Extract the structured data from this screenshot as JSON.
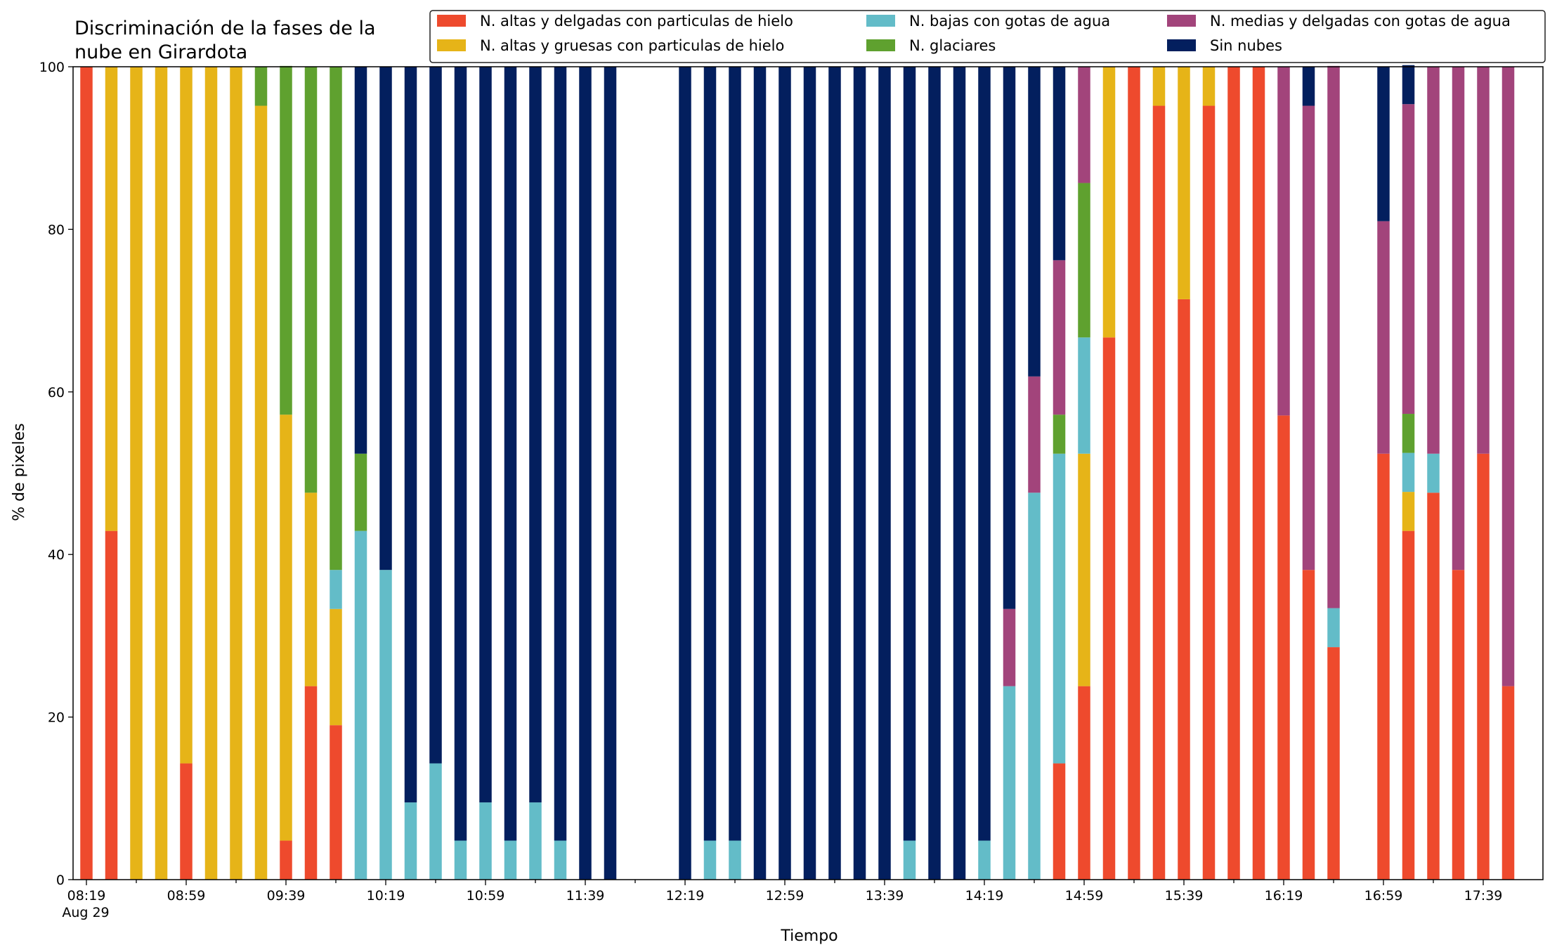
{
  "chart_data": {
    "type": "bar",
    "stacked": true,
    "title": "Discriminación de la fases de la\nnube en Girardota",
    "xlabel": "Tiempo",
    "ylabel": "% de pixeles",
    "ylim": [
      0,
      100
    ],
    "yticks": [
      0,
      20,
      40,
      60,
      80,
      100
    ],
    "x_start": "08:19",
    "x_step_minutes": 10,
    "x_count": 58,
    "xtick_labels": [
      {
        "label": "08:19",
        "sub": "Aug 29"
      },
      {
        "label": "08:59",
        "sub": ""
      },
      {
        "label": "09:39",
        "sub": ""
      },
      {
        "label": "10:19",
        "sub": ""
      },
      {
        "label": "10:59",
        "sub": ""
      },
      {
        "label": "11:39",
        "sub": ""
      },
      {
        "label": "12:19",
        "sub": ""
      },
      {
        "label": "12:59",
        "sub": ""
      },
      {
        "label": "13:39",
        "sub": ""
      },
      {
        "label": "14:19",
        "sub": ""
      },
      {
        "label": "14:59",
        "sub": ""
      },
      {
        "label": "15:39",
        "sub": ""
      },
      {
        "label": "16:19",
        "sub": ""
      },
      {
        "label": "16:59",
        "sub": ""
      },
      {
        "label": "17:39",
        "sub": ""
      }
    ],
    "legend_position": "top-right",
    "grid": false,
    "series": [
      {
        "name": "N. altas y delgadas con particulas de hielo",
        "color": "#ee4a2d",
        "values": [
          100,
          42.9,
          0,
          0,
          14.3,
          0,
          0,
          0,
          4.8,
          23.8,
          19,
          0,
          0,
          0,
          0,
          0,
          0,
          0,
          0,
          0,
          0,
          0,
          0,
          0,
          0,
          0,
          0,
          0,
          0,
          0,
          0,
          0,
          0,
          0,
          0,
          0,
          0,
          0,
          0,
          14.3,
          23.8,
          66.7,
          100,
          95.2,
          71.4,
          95.2,
          100,
          100,
          57.1,
          38.1,
          28.6,
          0,
          52.4,
          42.9,
          47.6,
          38.1,
          52.4,
          23.8
        ]
      },
      {
        "name": "N. altas y gruesas con particulas de hielo",
        "color": "#e6b418",
        "values": [
          0,
          57.1,
          100,
          100,
          85.7,
          100,
          100,
          95.2,
          52.4,
          23.8,
          14.3,
          0,
          0,
          0,
          0,
          0,
          0,
          0,
          0,
          0,
          0,
          0,
          0,
          0,
          0,
          0,
          0,
          0,
          0,
          0,
          0,
          0,
          0,
          0,
          0,
          0,
          0,
          0,
          0,
          0,
          28.6,
          33.3,
          0,
          4.8,
          28.6,
          4.8,
          0,
          0,
          0,
          0,
          0,
          0,
          0,
          4.8,
          0,
          0,
          0,
          0
        ]
      },
      {
        "name": "N. bajas con gotas de agua",
        "color": "#63bcc8",
        "values": [
          0,
          0,
          0,
          0,
          0,
          0,
          0,
          0,
          0,
          0,
          4.8,
          42.9,
          38.1,
          9.5,
          14.3,
          4.8,
          9.5,
          4.8,
          9.5,
          4.8,
          0,
          0,
          0,
          0,
          0,
          4.8,
          4.8,
          0,
          0,
          0,
          0,
          0,
          0,
          4.8,
          0,
          0,
          4.8,
          23.8,
          47.6,
          38.1,
          14.3,
          0,
          0,
          0,
          0,
          0,
          0,
          0,
          0,
          0,
          4.8,
          0,
          0,
          4.8,
          4.8,
          0,
          0,
          0
        ]
      },
      {
        "name": "N. glaciares",
        "color": "#5fa12f",
        "values": [
          0,
          0,
          0,
          0,
          0,
          0,
          0,
          4.8,
          42.9,
          52.4,
          61.9,
          9.5,
          0,
          0,
          0,
          0,
          0,
          0,
          0,
          0,
          0,
          0,
          0,
          0,
          0,
          0,
          0,
          0,
          0,
          0,
          0,
          0,
          0,
          0,
          0,
          0,
          0,
          0,
          0,
          4.8,
          19,
          0,
          0,
          0,
          0,
          0,
          0,
          0,
          0,
          0,
          0,
          0,
          0,
          4.8,
          0,
          0,
          0,
          0
        ]
      },
      {
        "name": "N. medias y delgadas con gotas de agua",
        "color": "#a2447b",
        "values": [
          0,
          0,
          0,
          0,
          0,
          0,
          0,
          0,
          0,
          0,
          0,
          0,
          0,
          0,
          0,
          0,
          0,
          0,
          0,
          0,
          0,
          0,
          0,
          0,
          0,
          0,
          0,
          0,
          0,
          0,
          0,
          0,
          0,
          0,
          0,
          0,
          0,
          9.5,
          14.3,
          19,
          14.3,
          0,
          0,
          0,
          0,
          0,
          0,
          0,
          42.9,
          57.1,
          66.7,
          0,
          28.6,
          38.1,
          47.6,
          61.9,
          47.6,
          76.2
        ]
      },
      {
        "name": "Sin nubes",
        "color": "#031f5e",
        "values": [
          0,
          0,
          0,
          0,
          0,
          0,
          0,
          0,
          0,
          0,
          0,
          47.6,
          61.9,
          90.5,
          85.7,
          95.2,
          90.5,
          95.2,
          90.5,
          95.2,
          100,
          100,
          0,
          0,
          100,
          95.2,
          95.2,
          100,
          100,
          100,
          100,
          100,
          100,
          95.2,
          100,
          100,
          95.2,
          66.7,
          38.1,
          23.8,
          0,
          0,
          0,
          0,
          0,
          0,
          0,
          0,
          0,
          4.8,
          0,
          0,
          19,
          4.8,
          0,
          0,
          0,
          0
        ]
      }
    ]
  }
}
